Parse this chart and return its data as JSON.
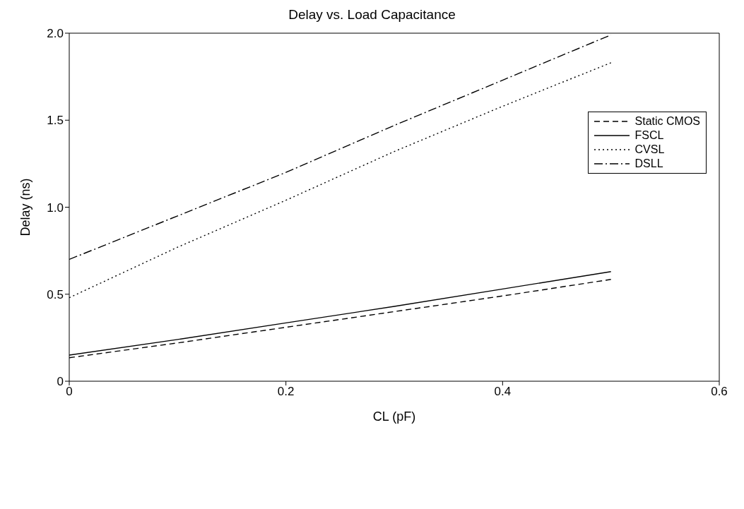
{
  "chart_data": {
    "type": "line",
    "title": "Delay vs. Load Capacitance",
    "xlabel": "CL (pF)",
    "ylabel": "Delay (ns)",
    "x": [
      0,
      0.1,
      0.2,
      0.3,
      0.4,
      0.5
    ],
    "series": [
      {
        "name": "Static CMOS",
        "color": "#000000",
        "line_style": "dashed",
        "values": [
          0.135,
          0.22,
          0.31,
          0.4,
          0.49,
          0.585
        ]
      },
      {
        "name": "FSCL",
        "color": "#000000",
        "line_style": "solid",
        "values": [
          0.15,
          0.24,
          0.335,
          0.43,
          0.53,
          0.63
        ]
      },
      {
        "name": "CVSL",
        "color": "#000000",
        "line_style": "dotted",
        "values": [
          0.48,
          0.77,
          1.04,
          1.32,
          1.58,
          1.83
        ]
      },
      {
        "name": "DSLL",
        "color": "#000000",
        "line_style": "dashdot",
        "values": [
          0.7,
          0.95,
          1.2,
          1.47,
          1.73,
          1.99
        ]
      }
    ],
    "xlim": [
      0,
      0.6
    ],
    "xticks": [
      0,
      0.2,
      0.4,
      0.6
    ],
    "ylim": [
      0,
      2
    ],
    "yticks": [
      0,
      {
        "value": 0.5,
        "label": "0.5"
      },
      {
        "value": 1,
        "label": "1.0"
      },
      1.5,
      {
        "value": 2,
        "label": "2.0"
      }
    ],
    "grid": false,
    "legend": "right",
    "marker": "none"
  }
}
